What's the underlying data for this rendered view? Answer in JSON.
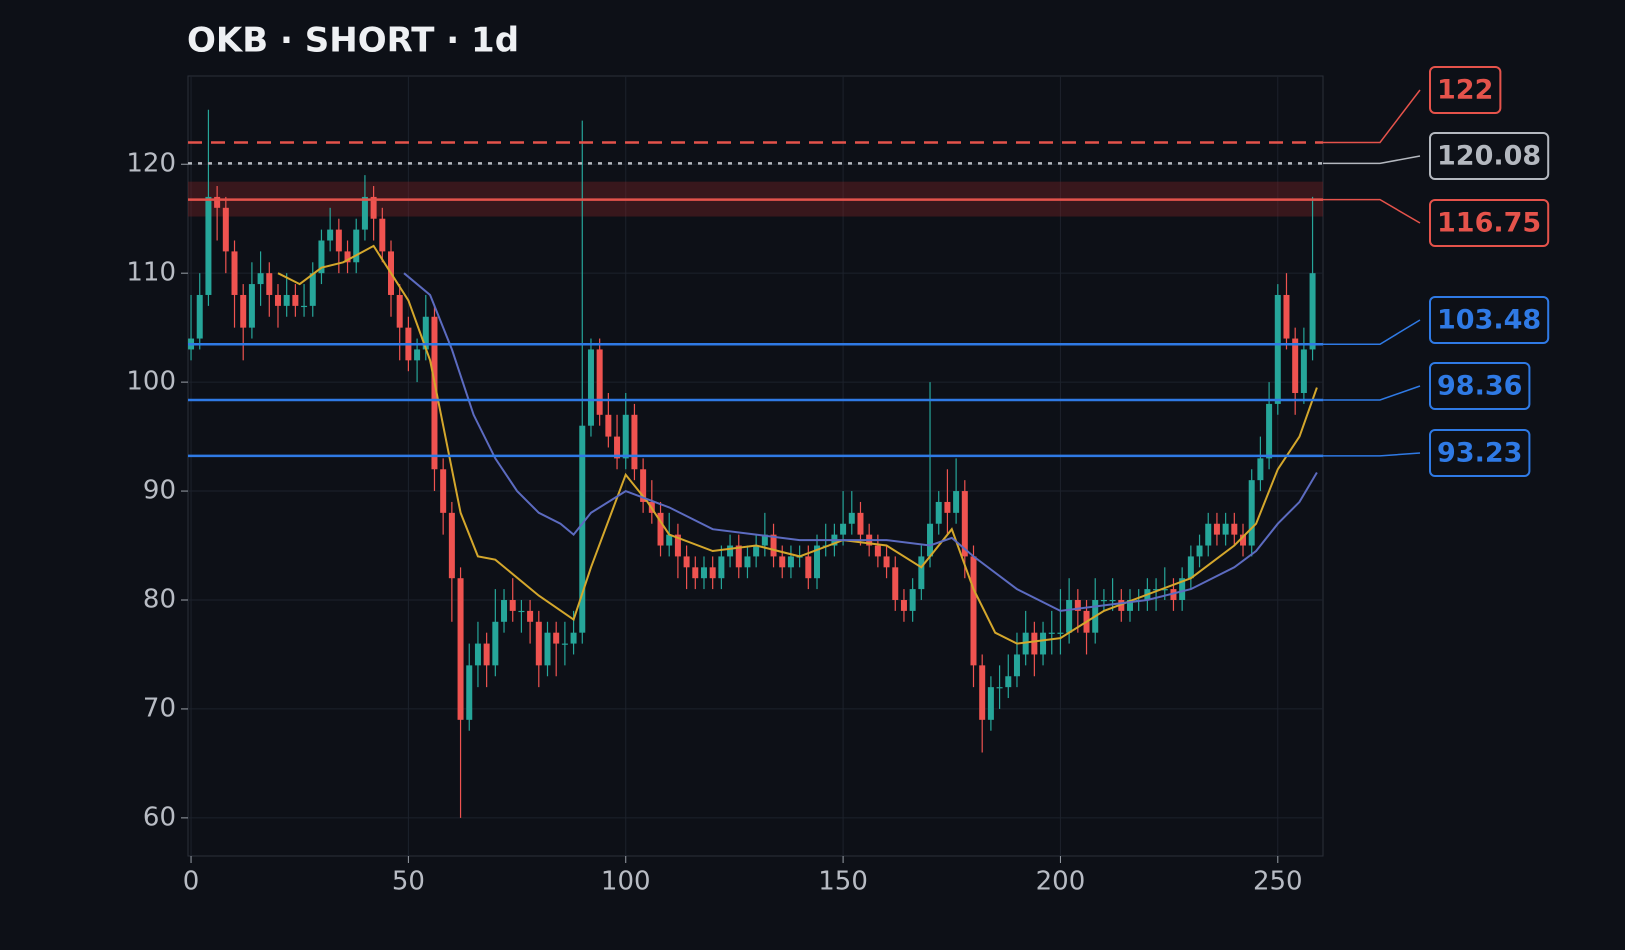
{
  "chart_data": {
    "type": "candlestick",
    "title": "OKB · SHORT · 1d",
    "xlim": [
      -0.7,
      260.4
    ],
    "xticks": [
      0,
      50,
      100,
      150,
      200,
      250
    ],
    "ylim": [
      56.5,
      128.1
    ],
    "yticks": [
      60,
      70,
      80,
      90,
      100,
      110,
      120
    ],
    "grid": true,
    "up_color": "#26a69a",
    "down_color": "#ef5350",
    "x": [
      0,
      2,
      4,
      6,
      8,
      10,
      12,
      14,
      16,
      18,
      20,
      22,
      24,
      26,
      28,
      30,
      32,
      34,
      36,
      38,
      40,
      42,
      44,
      46,
      48,
      50,
      52,
      54,
      56,
      58,
      60,
      62,
      64,
      66,
      68,
      70,
      72,
      74,
      76,
      78,
      80,
      82,
      84,
      86,
      88,
      90,
      92,
      94,
      96,
      98,
      100,
      102,
      104,
      106,
      108,
      110,
      112,
      114,
      116,
      118,
      120,
      122,
      124,
      126,
      128,
      130,
      132,
      134,
      136,
      138,
      140,
      142,
      144,
      146,
      148,
      150,
      152,
      154,
      156,
      158,
      160,
      162,
      164,
      166,
      168,
      170,
      172,
      174,
      176,
      178,
      180,
      182,
      184,
      186,
      188,
      190,
      192,
      194,
      196,
      198,
      200,
      202,
      204,
      206,
      208,
      210,
      212,
      214,
      216,
      218,
      220,
      222,
      224,
      226,
      228,
      230,
      232,
      234,
      236,
      238,
      240,
      242,
      244,
      246,
      248,
      250,
      252,
      254,
      256,
      258
    ],
    "candles": [
      [
        103,
        108,
        102,
        104
      ],
      [
        104,
        110,
        103,
        108
      ],
      [
        108,
        125,
        107,
        117
      ],
      [
        117,
        118,
        113,
        116
      ],
      [
        116,
        117,
        110,
        112
      ],
      [
        112,
        113,
        105,
        108
      ],
      [
        108,
        109,
        102,
        105
      ],
      [
        105,
        111,
        104,
        109
      ],
      [
        109,
        112,
        107,
        110
      ],
      [
        110,
        111,
        106,
        108
      ],
      [
        108,
        109,
        105,
        107
      ],
      [
        107,
        110,
        106,
        108
      ],
      [
        108,
        109,
        106,
        107
      ],
      [
        107,
        109,
        106,
        107
      ],
      [
        107,
        111,
        106,
        110
      ],
      [
        110,
        114,
        109,
        113
      ],
      [
        113,
        116,
        112,
        114
      ],
      [
        114,
        115,
        110,
        112
      ],
      [
        112,
        113,
        110,
        111
      ],
      [
        111,
        115,
        110,
        114
      ],
      [
        114,
        119,
        113,
        117
      ],
      [
        117,
        118,
        113,
        115
      ],
      [
        115,
        116,
        111,
        112
      ],
      [
        112,
        113,
        106,
        108
      ],
      [
        108,
        109,
        102,
        105
      ],
      [
        105,
        106,
        101,
        102
      ],
      [
        102,
        104,
        100,
        103
      ],
      [
        103,
        108,
        102,
        106
      ],
      [
        106,
        107,
        90,
        92
      ],
      [
        92,
        93,
        86,
        88
      ],
      [
        88,
        89,
        78,
        82
      ],
      [
        82,
        83,
        60,
        69
      ],
      [
        69,
        76,
        68,
        74
      ],
      [
        74,
        78,
        72,
        76
      ],
      [
        76,
        77,
        72,
        74
      ],
      [
        74,
        81,
        73,
        78
      ],
      [
        78,
        81,
        77,
        80
      ],
      [
        80,
        82,
        78,
        79
      ],
      [
        79,
        80,
        77,
        79
      ],
      [
        79,
        80,
        76,
        78
      ],
      [
        78,
        79,
        72,
        74
      ],
      [
        74,
        78,
        73,
        77
      ],
      [
        77,
        78,
        73,
        76
      ],
      [
        76,
        78,
        74,
        76
      ],
      [
        76,
        79,
        75,
        77
      ],
      [
        77,
        124,
        76,
        96
      ],
      [
        96,
        104,
        95,
        103
      ],
      [
        103,
        104,
        96,
        97
      ],
      [
        97,
        99,
        94,
        95
      ],
      [
        95,
        97,
        92,
        93
      ],
      [
        93,
        99,
        92,
        97
      ],
      [
        97,
        98,
        91,
        92
      ],
      [
        92,
        93,
        88,
        89
      ],
      [
        89,
        91,
        87,
        88
      ],
      [
        88,
        89,
        84,
        85
      ],
      [
        85,
        88,
        84,
        86
      ],
      [
        86,
        87,
        82,
        84
      ],
      [
        84,
        85,
        81,
        83
      ],
      [
        83,
        84,
        81,
        82
      ],
      [
        82,
        84,
        81,
        83
      ],
      [
        83,
        84,
        81,
        82
      ],
      [
        82,
        85,
        81,
        84
      ],
      [
        84,
        86,
        83,
        85
      ],
      [
        85,
        86,
        82,
        83
      ],
      [
        83,
        85,
        82,
        84
      ],
      [
        84,
        86,
        83,
        85
      ],
      [
        85,
        88,
        84,
        86
      ],
      [
        86,
        87,
        83,
        84
      ],
      [
        84,
        85,
        82,
        83
      ],
      [
        83,
        85,
        82,
        84
      ],
      [
        84,
        85,
        83,
        84
      ],
      [
        84,
        85,
        81,
        82
      ],
      [
        82,
        86,
        81,
        85
      ],
      [
        85,
        87,
        84,
        85
      ],
      [
        85,
        87,
        84,
        86
      ],
      [
        86,
        90,
        85,
        87
      ],
      [
        87,
        90,
        86,
        88
      ],
      [
        88,
        89,
        85,
        86
      ],
      [
        86,
        87,
        84,
        85
      ],
      [
        85,
        86,
        83,
        84
      ],
      [
        84,
        85,
        82,
        83
      ],
      [
        83,
        84,
        79,
        80
      ],
      [
        80,
        81,
        78,
        79
      ],
      [
        79,
        82,
        78,
        81
      ],
      [
        81,
        85,
        80,
        84
      ],
      [
        84,
        100,
        83,
        87
      ],
      [
        87,
        90,
        86,
        89
      ],
      [
        89,
        92,
        86,
        88
      ],
      [
        88,
        93,
        87,
        90
      ],
      [
        90,
        91,
        82,
        84
      ],
      [
        84,
        85,
        72,
        74
      ],
      [
        74,
        75,
        66,
        69
      ],
      [
        69,
        73,
        68,
        72
      ],
      [
        72,
        74,
        70,
        72
      ],
      [
        72,
        75,
        71,
        73
      ],
      [
        73,
        77,
        72,
        75
      ],
      [
        75,
        79,
        74,
        77
      ],
      [
        77,
        78,
        73,
        75
      ],
      [
        75,
        78,
        74,
        77
      ],
      [
        77,
        79,
        75,
        77
      ],
      [
        77,
        81,
        75,
        77
      ],
      [
        77,
        82,
        76,
        80
      ],
      [
        80,
        81,
        77,
        79
      ],
      [
        79,
        80,
        75,
        77
      ],
      [
        77,
        82,
        76,
        80
      ],
      [
        80,
        81,
        79,
        80
      ],
      [
        80,
        82,
        79,
        80
      ],
      [
        80,
        81,
        78,
        79
      ],
      [
        79,
        81,
        78,
        80
      ],
      [
        80,
        81,
        79,
        80
      ],
      [
        80,
        82,
        79,
        81
      ],
      [
        81,
        82,
        79,
        81
      ],
      [
        81,
        83,
        80,
        81
      ],
      [
        81,
        82,
        79,
        80
      ],
      [
        80,
        83,
        79,
        82
      ],
      [
        82,
        85,
        81,
        84
      ],
      [
        84,
        86,
        83,
        85
      ],
      [
        85,
        88,
        84,
        87
      ],
      [
        87,
        88,
        85,
        86
      ],
      [
        86,
        88,
        85,
        87
      ],
      [
        87,
        88,
        85,
        86
      ],
      [
        86,
        87,
        84,
        85
      ],
      [
        85,
        92,
        84,
        91
      ],
      [
        91,
        95,
        90,
        93
      ],
      [
        93,
        100,
        92,
        98
      ],
      [
        98,
        109,
        97,
        108
      ],
      [
        108,
        110,
        103,
        104
      ],
      [
        104,
        105,
        97,
        99
      ],
      [
        99,
        105,
        98,
        103
      ],
      [
        103,
        117,
        102,
        110
      ]
    ],
    "lines": [
      {
        "color": "#d4a72c",
        "x": [
          20,
          25,
          30,
          35,
          42,
          46,
          50,
          55,
          58,
          62,
          66,
          70,
          80,
          88,
          92,
          100,
          105,
          110,
          120,
          130,
          140,
          150,
          160,
          168,
          175,
          180,
          185,
          190,
          200,
          210,
          220,
          230,
          240,
          245,
          250,
          255,
          259
        ],
        "values": [
          110,
          109,
          110.5,
          111,
          112.5,
          110,
          107.5,
          102,
          96,
          88,
          84,
          83.7,
          80.4,
          78.2,
          83,
          91.5,
          89,
          86,
          84.5,
          85,
          84,
          85.5,
          85,
          83,
          86.5,
          81,
          77,
          76,
          76.5,
          79,
          80.5,
          82,
          85,
          87,
          92,
          95,
          99.5
        ]
      },
      {
        "color": "#5c6bc0",
        "x": [
          49,
          55,
          60,
          65,
          70,
          75,
          80,
          85,
          88,
          92,
          100,
          110,
          120,
          130,
          140,
          150,
          160,
          170,
          175,
          180,
          190,
          200,
          210,
          220,
          230,
          240,
          245,
          250,
          255,
          259
        ],
        "values": [
          110,
          108,
          103,
          97,
          93,
          90,
          88,
          87,
          86,
          88,
          90,
          88.5,
          86.5,
          86,
          85.5,
          85.5,
          85.5,
          85,
          85.7,
          84,
          81,
          79,
          79.5,
          80,
          81,
          83,
          84.5,
          87,
          89,
          91.7
        ]
      }
    ],
    "zone": {
      "range": [
        115.2,
        118.4
      ],
      "color": "#7a2426"
    },
    "levels": [
      {
        "value": 122,
        "color": "#e5534b",
        "style": "dashed"
      },
      {
        "value": 120.08,
        "color": "#b4b8bf",
        "style": "dotted"
      },
      {
        "value": 116.75,
        "color": "#e5534b",
        "style": "solid"
      },
      {
        "value": 103.48,
        "color": "#2f7ae5",
        "style": "solid"
      },
      {
        "value": 98.36,
        "color": "#2f7ae5",
        "style": "solid"
      },
      {
        "value": 93.23,
        "color": "#2f7ae5",
        "style": "solid"
      }
    ]
  }
}
